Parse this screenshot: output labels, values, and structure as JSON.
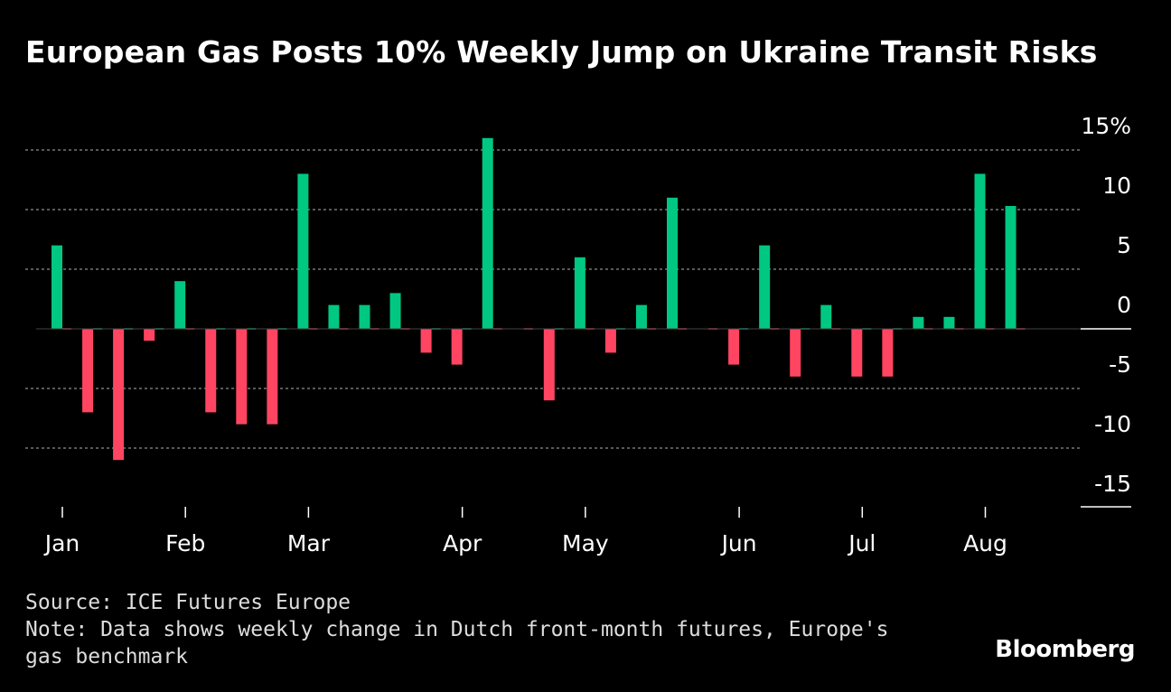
{
  "title": "European Gas Posts 10% Weekly Jump on Ukraine Transit Risks",
  "chart_data": {
    "type": "bar",
    "y_unit": "%",
    "ylim": [
      -15,
      15
    ],
    "yticks": [
      {
        "value": 15,
        "label": "15%"
      },
      {
        "value": 10,
        "label": "10"
      },
      {
        "value": 5,
        "label": "5"
      },
      {
        "value": 0,
        "label": "0"
      },
      {
        "value": -5,
        "label": "-5"
      },
      {
        "value": -10,
        "label": "-10"
      },
      {
        "value": -15,
        "label": "-15"
      }
    ],
    "month_ticks": [
      {
        "label": "Jan",
        "week": 0
      },
      {
        "label": "Feb",
        "week": 4
      },
      {
        "label": "Mar",
        "week": 8
      },
      {
        "label": "Apr",
        "week": 13
      },
      {
        "label": "May",
        "week": 17
      },
      {
        "label": "Jun",
        "week": 22
      },
      {
        "label": "Jul",
        "week": 26
      },
      {
        "label": "Aug",
        "week": 30
      }
    ],
    "weeks": 31,
    "values": [
      7,
      -7,
      -11,
      -1,
      4,
      -7,
      -8,
      -8,
      13,
      2,
      2,
      3,
      -2,
      -3,
      16,
      0,
      -6,
      6,
      -2,
      2,
      11,
      0,
      -3,
      7,
      -4,
      2,
      -4,
      -4,
      1,
      1,
      13,
      10.3
    ],
    "positive_color": "#00c882",
    "negative_color": "#ff4561",
    "grid": true
  },
  "source": "Source: ICE Futures Europe",
  "note": "Note: Data shows weekly change in Dutch front-month futures, Europe's gas benchmark",
  "brand": "Bloomberg"
}
